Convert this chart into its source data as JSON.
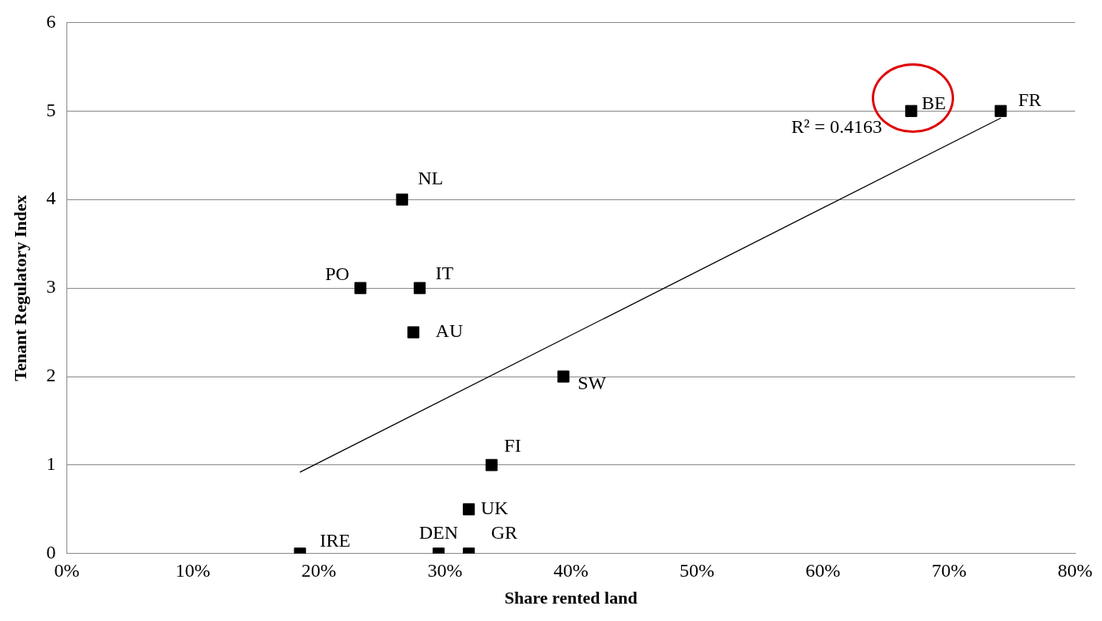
{
  "chart_data": {
    "type": "scatter",
    "xlabel": "Share rented land",
    "ylabel": "Tenant Regulatory Index",
    "series": [
      {
        "color": "#000000",
        "marker": "square",
        "x": [
          18.5,
          29.5,
          31.9,
          31.9,
          33.7,
          39.4,
          27.5,
          23.3,
          28.0,
          26.6,
          67.0,
          74.1
        ],
        "values": [
          0,
          0,
          0,
          0.5,
          1,
          2,
          2.5,
          3,
          3,
          4,
          5,
          5
        ]
      },
      {
        "type": "line",
        "marker": "none",
        "color": "#000000",
        "x": [
          18.5,
          74.1
        ],
        "values": [
          0.92,
          4.92
        ]
      }
    ],
    "annotations": [
      {
        "text": "IRE",
        "x": 18.5,
        "y": 0
      },
      {
        "text": "DEN",
        "x": 29.5,
        "y": 0
      },
      {
        "text": "GR",
        "x": 31.9,
        "y": 0
      },
      {
        "text": "UK",
        "x": 31.9,
        "y": 0.5
      },
      {
        "text": "FI",
        "x": 33.7,
        "y": 1
      },
      {
        "text": "SW",
        "x": 39.4,
        "y": 2
      },
      {
        "text": "AU",
        "x": 27.5,
        "y": 2.5
      },
      {
        "text": "PO",
        "x": 23.3,
        "y": 3
      },
      {
        "text": "IT",
        "x": 28.0,
        "y": 3
      },
      {
        "text": "NL",
        "x": 26.6,
        "y": 4
      },
      {
        "text": "BE",
        "x": 67.0,
        "y": 5
      },
      {
        "text": "FR",
        "x": 74.1,
        "y": 5
      },
      "R² = 0.4163"
    ],
    "xlim": [
      0,
      80
    ],
    "xticks": [
      {
        "value": 0,
        "label": "0%"
      },
      {
        "value": 10,
        "label": "10%"
      },
      {
        "value": 20,
        "label": "20%"
      },
      {
        "value": 30,
        "label": "30%"
      },
      {
        "value": 40,
        "label": "40%"
      },
      {
        "value": 50,
        "label": "50%"
      },
      {
        "value": 60,
        "label": "60%"
      },
      {
        "value": 70,
        "label": "70%"
      },
      {
        "value": 80,
        "label": "80%"
      }
    ],
    "ylim": [
      0,
      6
    ],
    "yticks": [
      0,
      1,
      2,
      3,
      4,
      5,
      6
    ],
    "grid": "y",
    "legend": false,
    "line_style": "solid"
  }
}
